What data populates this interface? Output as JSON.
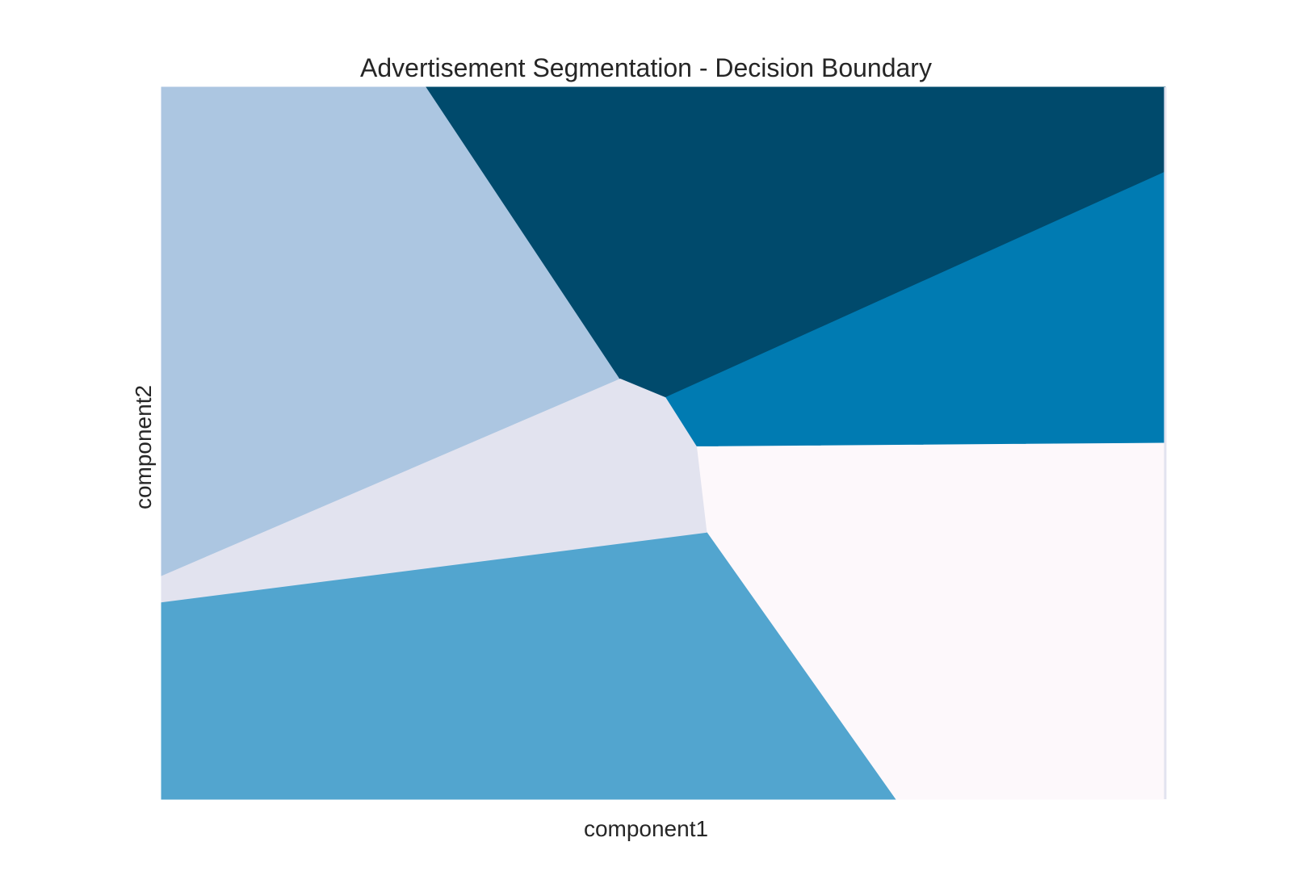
{
  "chart_data": {
    "type": "heatmap",
    "title": "Advertisement Segmentation - Decision Boundary",
    "xlabel": "component1",
    "ylabel": "component2",
    "xlim": [
      0,
      1
    ],
    "ylim": [
      0,
      1
    ],
    "grid": false,
    "legend": "none",
    "regions": [
      {
        "colour": "#acc6e1",
        "polygon": [
          [
            0,
            1
          ],
          [
            0.264,
            1
          ],
          [
            0.457,
            0.59
          ],
          [
            0,
            0.313
          ]
        ]
      },
      {
        "colour": "#004a6c",
        "polygon": [
          [
            0.264,
            1
          ],
          [
            1,
            1
          ],
          [
            1,
            0.881
          ],
          [
            0.502,
            0.564
          ],
          [
            0.457,
            0.59
          ]
        ]
      },
      {
        "colour": "#007bb2",
        "polygon": [
          [
            1,
            0.881
          ],
          [
            1,
            0.5
          ],
          [
            0.533,
            0.495
          ],
          [
            0.502,
            0.564
          ]
        ]
      },
      {
        "colour": "#fdf8fb",
        "polygon": [
          [
            1,
            0.5
          ],
          [
            1,
            0
          ],
          [
            0.731,
            0
          ],
          [
            0.543,
            0.375
          ],
          [
            0.533,
            0.495
          ]
        ]
      },
      {
        "colour": "#52a5cf",
        "polygon": [
          [
            0,
            0.277
          ],
          [
            0.543,
            0.375
          ],
          [
            0.731,
            0
          ],
          [
            0,
            0
          ]
        ]
      },
      {
        "colour": "#e2e3ef",
        "polygon": [
          [
            0,
            0.313
          ],
          [
            0.457,
            0.59
          ],
          [
            0.502,
            0.564
          ],
          [
            0.533,
            0.495
          ],
          [
            0.543,
            0.375
          ],
          [
            0,
            0.277
          ]
        ]
      }
    ]
  }
}
